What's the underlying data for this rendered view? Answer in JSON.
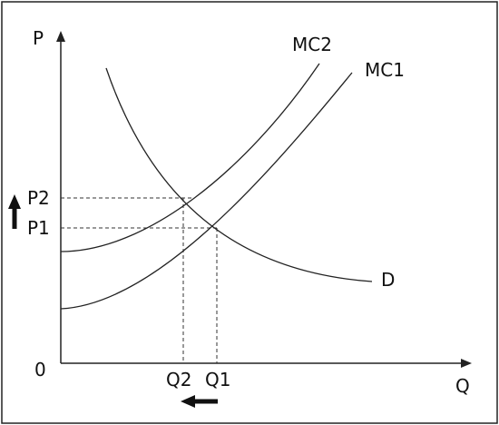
{
  "axes": {
    "y_label": "P",
    "x_label": "Q",
    "origin": "0"
  },
  "curves": {
    "mc2": "MC2",
    "mc1": "MC1",
    "demand": "D"
  },
  "prices": {
    "p2": "P2",
    "p1": "P1"
  },
  "quantities": {
    "q2": "Q2",
    "q1": "Q1"
  }
}
